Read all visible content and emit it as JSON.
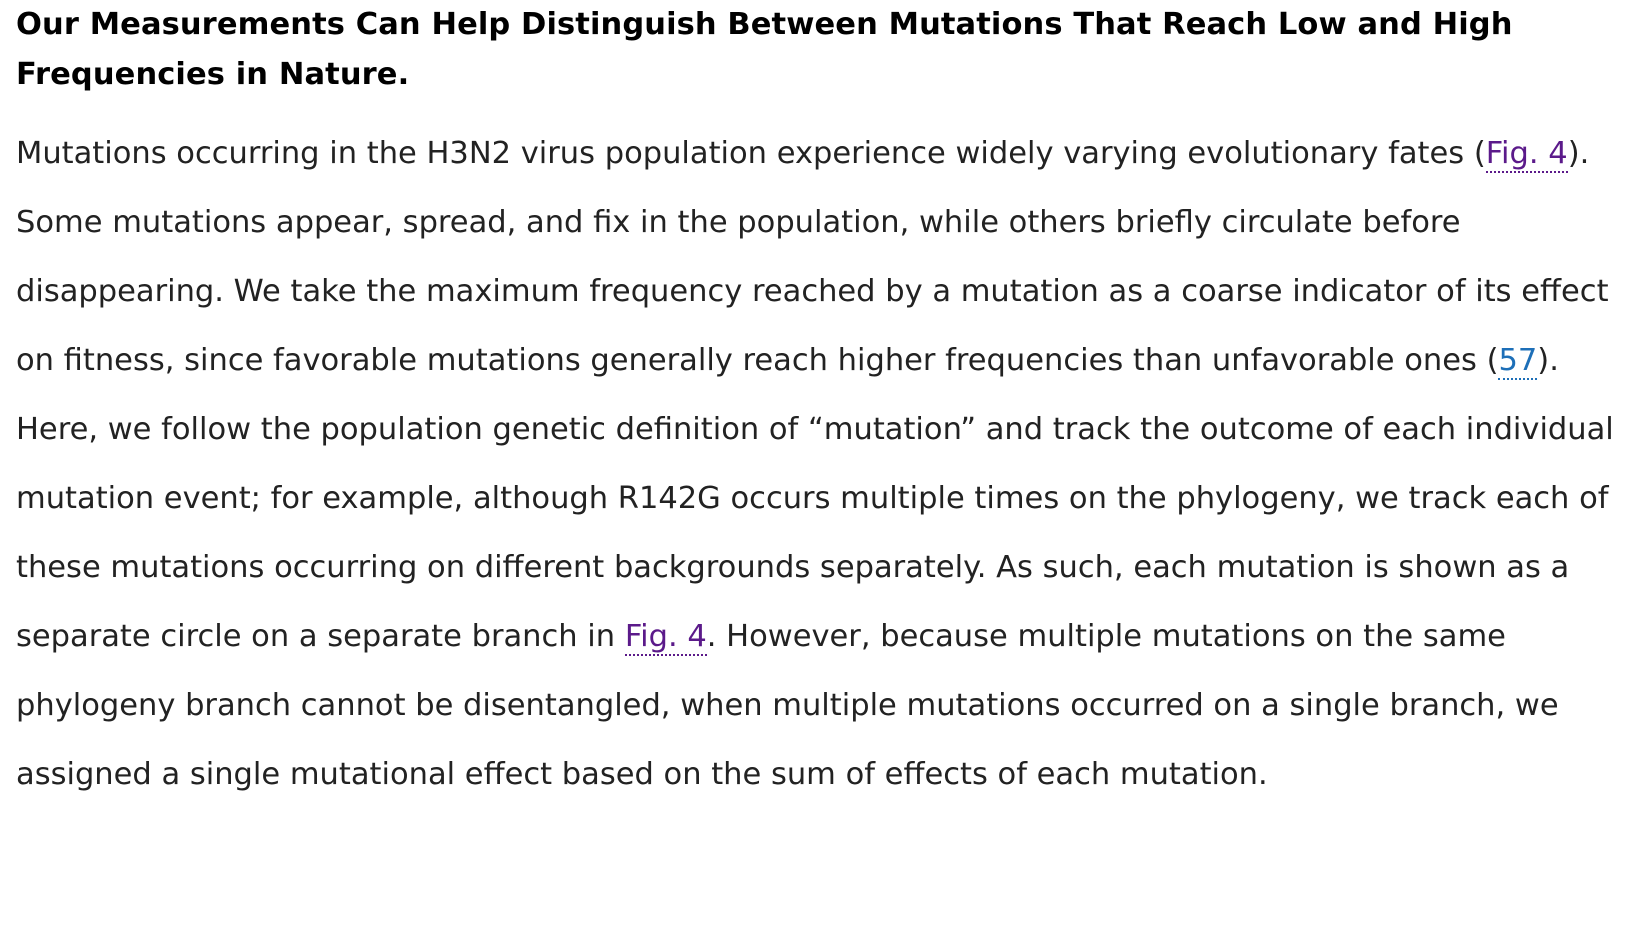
{
  "heading": "Our Measurements Can Help Distinguish Between Mutations That Reach Low and High Frequencies in Nature.",
  "paragraph": {
    "t1": "Mutations occurring in the H3N2 virus population experience widely varying evolutionary fates (",
    "fig_link_1": "Fig. 4",
    "t2": "). Some mutations appear, spread, and fix in the population, while others briefly circulate before disappearing. We take the maximum frequency reached by a mutation as a coarse indicator of its effect on fitness, since favorable mutations generally reach higher frequencies than unfavorable ones (",
    "ref_link": "57",
    "t3": "). Here, we follow the population genetic definition of “mutation” and track the outcome of each individual mutation event; for example, although R142G occurs multiple times on the phylogeny, we track each of these mutations occurring on different backgrounds separately. As such, each mutation is shown as a separate circle on a separate branch in ",
    "fig_link_2": "Fig. 4",
    "t4": ". However, because multiple mutations on the same phylogeny branch cannot be disentangled, when multiple mutations occurred on a single branch, we assigned a single mutational effect based on the sum of effects of each mutation."
  },
  "colors": {
    "heading_text": "#000000",
    "body_text": "#222222",
    "figure_link": "#5b1a8a",
    "citation_link": "#1d6fb8"
  }
}
